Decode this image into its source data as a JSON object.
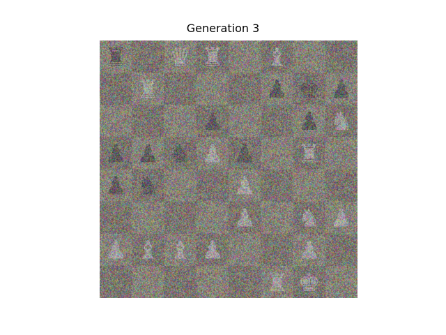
{
  "title": "Generation 3",
  "board": {
    "ranks": [
      [
        "rook-dark",
        "",
        "queen-light",
        "rook-light",
        "",
        "bishop-light",
        "",
        ""
      ],
      [
        "",
        "rook-light",
        "",
        "",
        "",
        "pawn-dark",
        "king-dark",
        "pawn-dark"
      ],
      [
        "",
        "",
        "",
        "pawn-dark",
        "",
        "",
        "pawn-dark",
        "knight-light"
      ],
      [
        "pawn-dark",
        "pawn-dark",
        "knight-dark",
        "pawn-light",
        "pawn-dark",
        "",
        "rook-light",
        ""
      ],
      [
        "pawn-dark",
        "knight-dark",
        "",
        "",
        "pawn-light",
        "",
        "",
        ""
      ],
      [
        "",
        "",
        "",
        "",
        "pawn-light",
        "",
        "knight-light",
        "pawn-light"
      ],
      [
        "pawn-light",
        "bishop-light",
        "bishop-light",
        "pawn-light",
        "",
        "",
        "pawn-light",
        ""
      ],
      [
        "",
        "",
        "",
        "",
        "",
        "rook-light",
        "king-light",
        ""
      ]
    ],
    "square_colors": {
      "light": "#8f8676",
      "dark": "#7a6e63"
    },
    "piece_colors": {
      "light": "#c9c5c6",
      "dark": "#3b3a3d"
    }
  }
}
